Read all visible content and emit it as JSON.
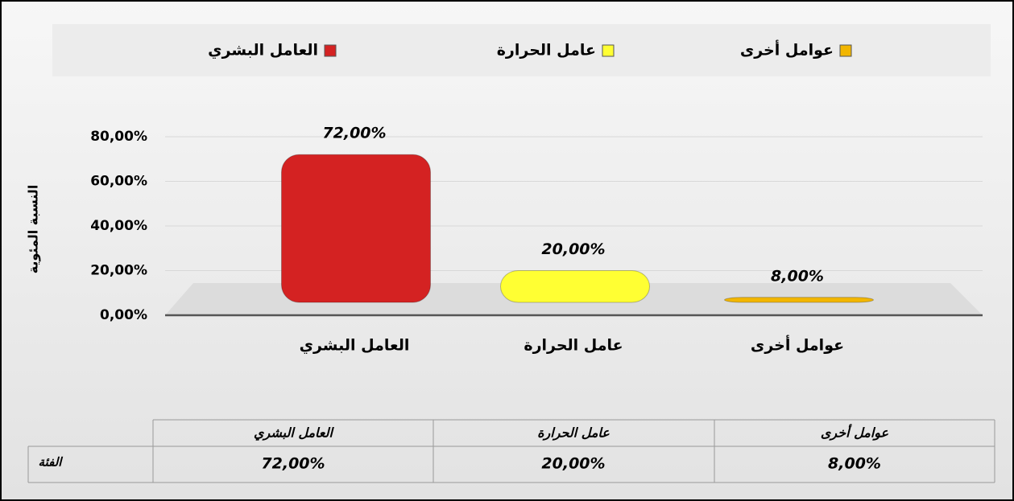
{
  "chart_data": {
    "type": "bar",
    "categories": [
      "العامل البشري",
      "عامل الحرارة",
      "عوامل أخرى"
    ],
    "values": [
      72,
      20,
      8
    ],
    "value_labels": [
      "72,00%",
      "20,00%",
      "8,00%"
    ],
    "colors": [
      "#d42222",
      "#ffff33",
      "#f2b600"
    ],
    "ylabel": "النسبة المئوية",
    "ylim": [
      0,
      80
    ],
    "yticks": [
      {
        "value": 0,
        "label": "0,00%"
      },
      {
        "value": 20,
        "label": "20,00%"
      },
      {
        "value": 40,
        "label": "40,00%"
      },
      {
        "value": 60,
        "label": "60,00%"
      },
      {
        "value": 80,
        "label": "80,00%"
      }
    ],
    "grid": true,
    "legend": "top",
    "table_row_label": "الفئة"
  }
}
